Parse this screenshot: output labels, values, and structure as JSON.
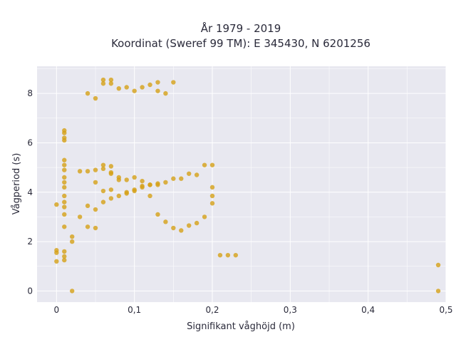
{
  "chart_data": {
    "type": "scatter",
    "title": [
      "År 1979 - 2019",
      "Koordinat (Sweref 99 TM): E 345430, N 6201256"
    ],
    "xlabel": "Signifikant våghöjd (m)",
    "ylabel": "Vågperiod (s)",
    "xlim": [
      -0.025,
      0.5
    ],
    "ylim": [
      -0.45,
      9.1
    ],
    "x_ticks": [
      0,
      0.1,
      0.2,
      0.3,
      0.4,
      0.5
    ],
    "x_tick_labels": [
      "0",
      "0,1",
      "0,2",
      "0,3",
      "0,4",
      "0,5"
    ],
    "y_ticks": [
      0,
      2,
      4,
      6,
      8
    ],
    "y_tick_labels": [
      "0",
      "2",
      "4",
      "6",
      "8"
    ],
    "grid": true,
    "colors": {
      "marker": "#d4a017",
      "plot_background": "#e8e8f0",
      "grid": "#ffffff"
    },
    "series": [
      {
        "points": [
          [
            0.0,
            3.5
          ],
          [
            0.0,
            1.65
          ],
          [
            0.0,
            1.55
          ],
          [
            0.0,
            1.2
          ],
          [
            0.01,
            6.5
          ],
          [
            0.01,
            6.4
          ],
          [
            0.01,
            6.2
          ],
          [
            0.01,
            6.1
          ],
          [
            0.01,
            5.3
          ],
          [
            0.01,
            5.1
          ],
          [
            0.01,
            4.9
          ],
          [
            0.01,
            4.6
          ],
          [
            0.01,
            4.4
          ],
          [
            0.01,
            4.2
          ],
          [
            0.01,
            3.85
          ],
          [
            0.01,
            3.6
          ],
          [
            0.01,
            3.4
          ],
          [
            0.01,
            3.1
          ],
          [
            0.01,
            2.6
          ],
          [
            0.01,
            1.6
          ],
          [
            0.01,
            1.4
          ],
          [
            0.01,
            1.25
          ],
          [
            0.04,
            8.0
          ],
          [
            0.05,
            7.8
          ],
          [
            0.06,
            8.4
          ],
          [
            0.06,
            8.55
          ],
          [
            0.07,
            8.4
          ],
          [
            0.07,
            8.55
          ],
          [
            0.08,
            8.2
          ],
          [
            0.09,
            8.25
          ],
          [
            0.1,
            8.1
          ],
          [
            0.11,
            8.25
          ],
          [
            0.12,
            8.35
          ],
          [
            0.13,
            8.1
          ],
          [
            0.14,
            8.0
          ],
          [
            0.15,
            8.45
          ],
          [
            0.13,
            8.45
          ],
          [
            0.06,
            5.1
          ],
          [
            0.07,
            5.05
          ],
          [
            0.07,
            4.8
          ],
          [
            0.08,
            4.6
          ],
          [
            0.09,
            4.5
          ],
          [
            0.1,
            4.6
          ],
          [
            0.11,
            4.45
          ],
          [
            0.12,
            4.3
          ],
          [
            0.13,
            4.3
          ],
          [
            0.14,
            4.4
          ],
          [
            0.15,
            4.55
          ],
          [
            0.16,
            4.55
          ],
          [
            0.17,
            4.75
          ],
          [
            0.18,
            4.7
          ],
          [
            0.19,
            5.1
          ],
          [
            0.2,
            5.1
          ],
          [
            0.2,
            4.2
          ],
          [
            0.2,
            3.85
          ],
          [
            0.02,
            2.2
          ],
          [
            0.02,
            2.0
          ],
          [
            0.04,
            3.45
          ],
          [
            0.05,
            3.3
          ],
          [
            0.06,
            3.6
          ],
          [
            0.07,
            3.75
          ],
          [
            0.08,
            3.85
          ],
          [
            0.09,
            3.95
          ],
          [
            0.1,
            4.1
          ],
          [
            0.11,
            4.2
          ],
          [
            0.12,
            3.85
          ],
          [
            0.13,
            3.1
          ],
          [
            0.14,
            2.8
          ],
          [
            0.15,
            2.55
          ],
          [
            0.16,
            2.45
          ],
          [
            0.17,
            2.65
          ],
          [
            0.18,
            2.75
          ],
          [
            0.19,
            3.0
          ],
          [
            0.2,
            3.55
          ],
          [
            0.02,
            0.0
          ],
          [
            0.49,
            0.0
          ],
          [
            0.49,
            1.05
          ],
          [
            0.23,
            1.45
          ],
          [
            0.22,
            1.45
          ],
          [
            0.21,
            1.45
          ],
          [
            0.05,
            4.9
          ],
          [
            0.06,
            4.95
          ],
          [
            0.07,
            4.75
          ],
          [
            0.08,
            4.5
          ],
          [
            0.09,
            4.0
          ],
          [
            0.1,
            4.05
          ],
          [
            0.11,
            4.25
          ],
          [
            0.12,
            4.3
          ],
          [
            0.13,
            4.35
          ],
          [
            0.03,
            4.85
          ],
          [
            0.04,
            4.85
          ],
          [
            0.05,
            4.4
          ],
          [
            0.06,
            4.05
          ],
          [
            0.07,
            4.1
          ],
          [
            0.03,
            3.0
          ],
          [
            0.04,
            2.6
          ],
          [
            0.05,
            2.55
          ]
        ]
      }
    ]
  }
}
